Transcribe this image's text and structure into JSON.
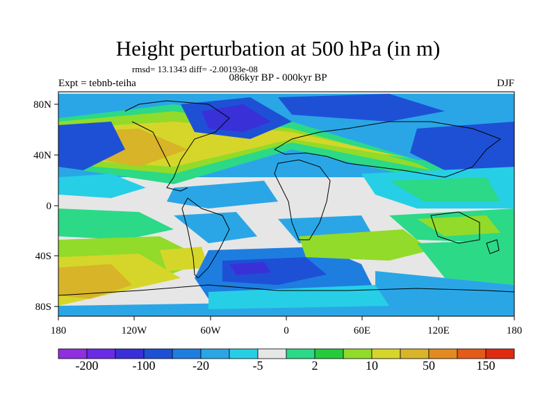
{
  "title": "Height perturbation at 500 hPa (in m)",
  "rmsd_text": "rmsd= 13.1343 diff= -2.00193e-08",
  "subtitle": "086kyr BP - 000kyr BP",
  "expt_label": "Expt = tebnb-teiha",
  "season": "DJF",
  "x_ticks": [
    "180",
    "120W",
    "60W",
    "0",
    "60E",
    "120E",
    "180"
  ],
  "y_ticks": [
    "80N",
    "40N",
    "0",
    "40S",
    "80S"
  ],
  "colorbar": {
    "colors": [
      "#8f2fe0",
      "#6a2be6",
      "#3a30d8",
      "#1e50d6",
      "#1d7ee0",
      "#2aa6e6",
      "#26cfe6",
      "#e6e6e6",
      "#2bd987",
      "#26cb3b",
      "#92db2a",
      "#d6d62a",
      "#d8b428",
      "#e28a20",
      "#e45a18",
      "#e02a10"
    ],
    "labels": [
      "-200",
      "-100",
      "-20",
      "-5",
      "2",
      "10",
      "50",
      "150"
    ]
  }
}
